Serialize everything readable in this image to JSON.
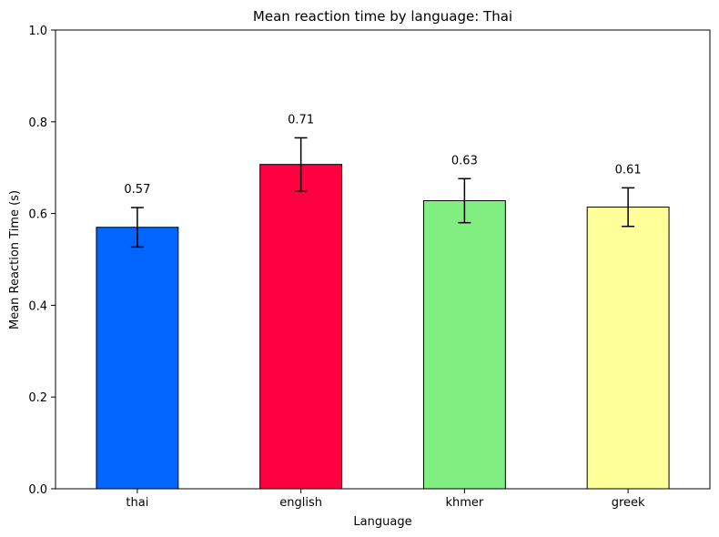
{
  "chart_data": {
    "type": "bar",
    "title": "Mean reaction time by language: Thai",
    "xlabel": "Language",
    "ylabel": "Mean Reaction Time (s)",
    "categories": [
      "thai",
      "english",
      "khmer",
      "greek"
    ],
    "values": [
      0.57,
      0.707,
      0.628,
      0.614
    ],
    "errors": [
      0.043,
      0.058,
      0.048,
      0.042
    ],
    "data_labels": [
      "0.57",
      "0.71",
      "0.63",
      "0.61"
    ],
    "colors": [
      "#0066ff",
      "#ff0040",
      "#80ee80",
      "#ffff99"
    ],
    "ylim": [
      0,
      1.0
    ],
    "yticks": [
      0.0,
      0.2,
      0.4,
      0.6,
      0.8,
      1.0
    ],
    "ytick_labels": [
      "0.0",
      "0.2",
      "0.4",
      "0.6",
      "0.8",
      "1.0"
    ],
    "grid": false,
    "legend": null
  }
}
